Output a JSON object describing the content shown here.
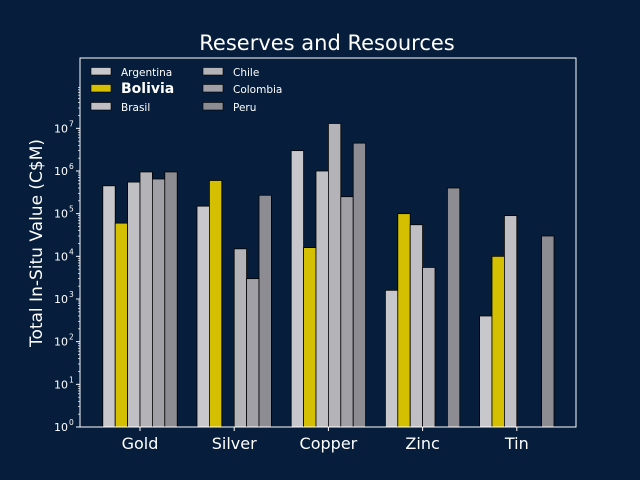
{
  "chart_data": {
    "type": "bar",
    "title": "Reserves and Resources",
    "xlabel": "",
    "ylabel": "Total In-Situ Value (C$M)",
    "yscale": "log",
    "ylim": [
      1,
      1000000000
    ],
    "grid": false,
    "legend_position": "top-left",
    "categories": [
      "Gold",
      "Silver",
      "Copper",
      "Zinc",
      "Tin"
    ],
    "yticks": [
      {
        "value": 1,
        "exp": "0"
      },
      {
        "value": 10,
        "exp": "1"
      },
      {
        "value": 100,
        "exp": "2"
      },
      {
        "value": 1000,
        "exp": "3"
      },
      {
        "value": 10000,
        "exp": "4"
      },
      {
        "value": 100000,
        "exp": "5"
      },
      {
        "value": 1000000,
        "exp": "6"
      },
      {
        "value": 10000000,
        "exp": "7"
      }
    ],
    "series": [
      {
        "name": "Argentina",
        "color": "#c8c8cc",
        "highlight": false,
        "values": [
          450000,
          150000,
          3000000,
          1600,
          400
        ]
      },
      {
        "name": "Bolivia",
        "color": "#d4c000",
        "highlight": true,
        "values": [
          60000,
          600000,
          16000,
          100000,
          10000
        ]
      },
      {
        "name": "Brasil",
        "color": "#c0c0c4",
        "highlight": false,
        "values": [
          550000,
          null,
          1000000,
          55000,
          90000
        ]
      },
      {
        "name": "Chile",
        "color": "#b4b4b8",
        "highlight": false,
        "values": [
          950000,
          15000,
          13000000,
          5500,
          null
        ]
      },
      {
        "name": "Colombia",
        "color": "#a0a0a6",
        "highlight": false,
        "values": [
          650000,
          3000,
          250000,
          null,
          null
        ]
      },
      {
        "name": "Peru",
        "color": "#8c8c92",
        "highlight": false,
        "values": [
          950000,
          270000,
          4500000,
          400000,
          30000
        ]
      }
    ]
  }
}
